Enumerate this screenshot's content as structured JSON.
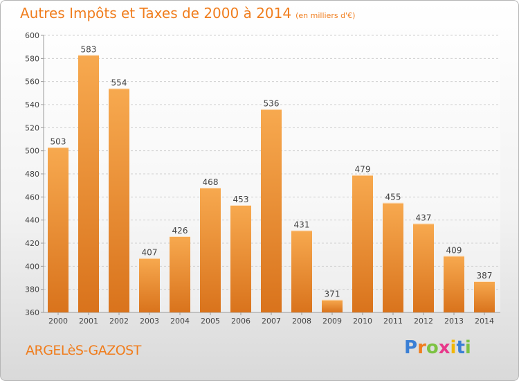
{
  "title": "Autres Impôts et Taxes de 2000 à 2014",
  "subtitle": "(en milliers d'€)",
  "town": "ARGELèS-GAZOST",
  "logo": {
    "letters": [
      "P",
      "r",
      "o",
      "x",
      "i",
      "t",
      "i"
    ],
    "colors": [
      "#3a7fd5",
      "#f07d1d",
      "#7cc242",
      "#e8388a",
      "#f2b705",
      "#3a7fd5",
      "#7cc242"
    ]
  },
  "colors": {
    "accent": "#f07d1d",
    "bar_light": "#f7a94f",
    "bar_dark": "#d9731c"
  },
  "chart_data": {
    "type": "bar",
    "categories": [
      "2000",
      "2001",
      "2002",
      "2003",
      "2004",
      "2005",
      "2006",
      "2007",
      "2008",
      "2009",
      "2010",
      "2011",
      "2012",
      "2013",
      "2014"
    ],
    "values": [
      503,
      583,
      554,
      407,
      426,
      468,
      453,
      536,
      431,
      371,
      479,
      455,
      437,
      409,
      387
    ],
    "ylim": [
      360,
      600
    ],
    "yticks": [
      360,
      380,
      400,
      420,
      440,
      460,
      480,
      500,
      520,
      540,
      560,
      580,
      600
    ],
    "grid": true,
    "xlabel": "",
    "ylabel": ""
  }
}
